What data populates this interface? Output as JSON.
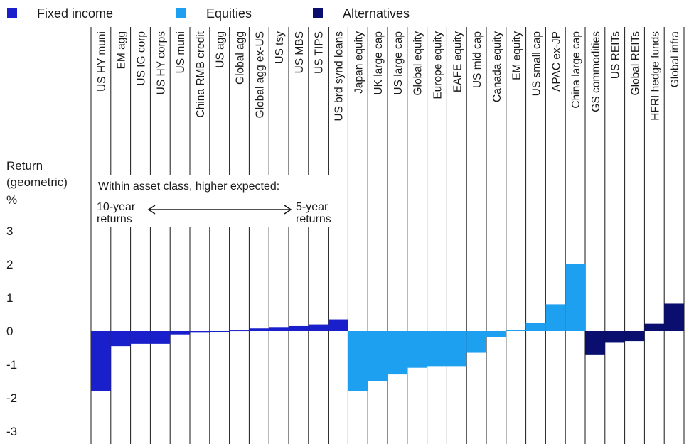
{
  "legend": [
    {
      "label": "Fixed income",
      "color": "#1a1fcc"
    },
    {
      "label": "Equities",
      "color": "#1ea0f0"
    },
    {
      "label": "Alternatives",
      "color": "#0a0e6e"
    }
  ],
  "y_axis": {
    "label_lines": [
      "Return",
      "(geometric)",
      "%"
    ]
  },
  "annotation": {
    "line1": "Within asset class, higher expected:",
    "left_top": "10-year",
    "left_bottom": "returns",
    "right_top": "5-year",
    "right_bottom": "returns",
    "arrow_icon": "double-headed-arrow-icon"
  },
  "chart_data": {
    "type": "bar",
    "ylim": [
      -3,
      3
    ],
    "yticks": [
      "3",
      "2",
      "1",
      "0",
      "-1",
      "-2",
      "-3"
    ],
    "ytick_values": [
      3,
      2,
      1,
      0,
      -1,
      -2,
      -3
    ],
    "grid": false,
    "legend_position": "top-left",
    "categories": [
      "US HY muni",
      "EM agg",
      "US IG corp",
      "US HY corps",
      "US muni",
      "China RMB credit",
      "US agg",
      "Global agg",
      "Global agg ex-US",
      "US tsy",
      "US MBS",
      "US TIPS",
      "US brd synd loans",
      "Japan equity",
      "UK large cap",
      "US large cap",
      "Global equity",
      "Europe equity",
      "EAFE equity",
      "US mid cap",
      "Canada equity",
      "EM equity",
      "US small cap",
      "APAC ex-JP",
      "China large cap",
      "GS commodities",
      "US REITs",
      "Global REITs",
      "HFRI hedge funds",
      "Global infra"
    ],
    "groups": [
      "Fixed income",
      "Fixed income",
      "Fixed income",
      "Fixed income",
      "Fixed income",
      "Fixed income",
      "Fixed income",
      "Fixed income",
      "Fixed income",
      "Fixed income",
      "Fixed income",
      "Fixed income",
      "Fixed income",
      "Equities",
      "Equities",
      "Equities",
      "Equities",
      "Equities",
      "Equities",
      "Equities",
      "Equities",
      "Equities",
      "Equities",
      "Equities",
      "Equities",
      "Alternatives",
      "Alternatives",
      "Alternatives",
      "Alternatives",
      "Alternatives"
    ],
    "values": [
      -1.8,
      -0.45,
      -0.38,
      -0.38,
      -0.1,
      -0.05,
      -0.02,
      0.02,
      0.08,
      0.1,
      0.15,
      0.2,
      0.35,
      -1.8,
      -1.5,
      -1.3,
      -1.1,
      -1.05,
      -1.05,
      -0.65,
      -0.18,
      0.03,
      0.25,
      0.8,
      2.0,
      -0.72,
      -0.35,
      -0.3,
      0.22,
      0.82
    ]
  }
}
